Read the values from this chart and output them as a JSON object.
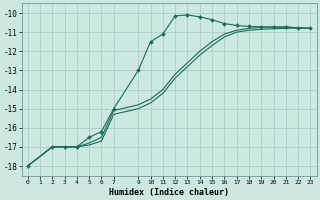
{
  "xlabel": "Humidex (Indice chaleur)",
  "bg_color": "#cce8e0",
  "grid_color": "#aad0c8",
  "line_color": "#1a6b5a",
  "xlim": [
    -0.5,
    23.5
  ],
  "ylim": [
    -18.5,
    -9.5
  ],
  "yticks": [
    -18,
    -17,
    -16,
    -15,
    -14,
    -13,
    -12,
    -11,
    -10
  ],
  "xticks": [
    0,
    1,
    2,
    3,
    4,
    5,
    6,
    7,
    9,
    10,
    11,
    12,
    13,
    14,
    15,
    16,
    17,
    18,
    19,
    20,
    21,
    22,
    23
  ],
  "xtick_labels": [
    "0",
    "1",
    "2",
    "3",
    "4",
    "5",
    "6",
    "7",
    "9",
    "10",
    "11",
    "12",
    "13",
    "14",
    "15",
    "16",
    "17",
    "18",
    "19",
    "20",
    "21",
    "22",
    "23"
  ],
  "series1_x": [
    0,
    2,
    3,
    4,
    5,
    6,
    7,
    9,
    10,
    11,
    12,
    13,
    14,
    15,
    16,
    17,
    18,
    19,
    20,
    21,
    22,
    23
  ],
  "series1_y": [
    -18.0,
    -17.0,
    -17.0,
    -17.0,
    -16.5,
    -16.2,
    -15.0,
    -13.0,
    -11.5,
    -11.1,
    -10.15,
    -10.1,
    -10.2,
    -10.35,
    -10.55,
    -10.65,
    -10.7,
    -10.72,
    -10.73,
    -10.74,
    -10.78,
    -10.8
  ],
  "series2_x": [
    0,
    2,
    3,
    4,
    5,
    6,
    7,
    9,
    10,
    11,
    12,
    13,
    14,
    15,
    16,
    17,
    18,
    19,
    20,
    21,
    22,
    23
  ],
  "series2_y": [
    -18.0,
    -17.0,
    -17.0,
    -17.0,
    -16.8,
    -16.5,
    -15.1,
    -14.8,
    -14.5,
    -14.0,
    -13.2,
    -12.6,
    -12.0,
    -11.5,
    -11.1,
    -10.9,
    -10.8,
    -10.75,
    -10.73,
    -10.72,
    -10.78,
    -10.8
  ],
  "series3_x": [
    0,
    2,
    3,
    4,
    5,
    6,
    7,
    9,
    10,
    11,
    12,
    13,
    14,
    15,
    16,
    17,
    18,
    19,
    20,
    21,
    22,
    23
  ],
  "series3_y": [
    -18.0,
    -17.0,
    -17.0,
    -17.0,
    -16.9,
    -16.7,
    -15.3,
    -15.0,
    -14.7,
    -14.2,
    -13.4,
    -12.8,
    -12.2,
    -11.7,
    -11.25,
    -11.0,
    -10.9,
    -10.85,
    -10.82,
    -10.8,
    -10.78,
    -10.8
  ]
}
